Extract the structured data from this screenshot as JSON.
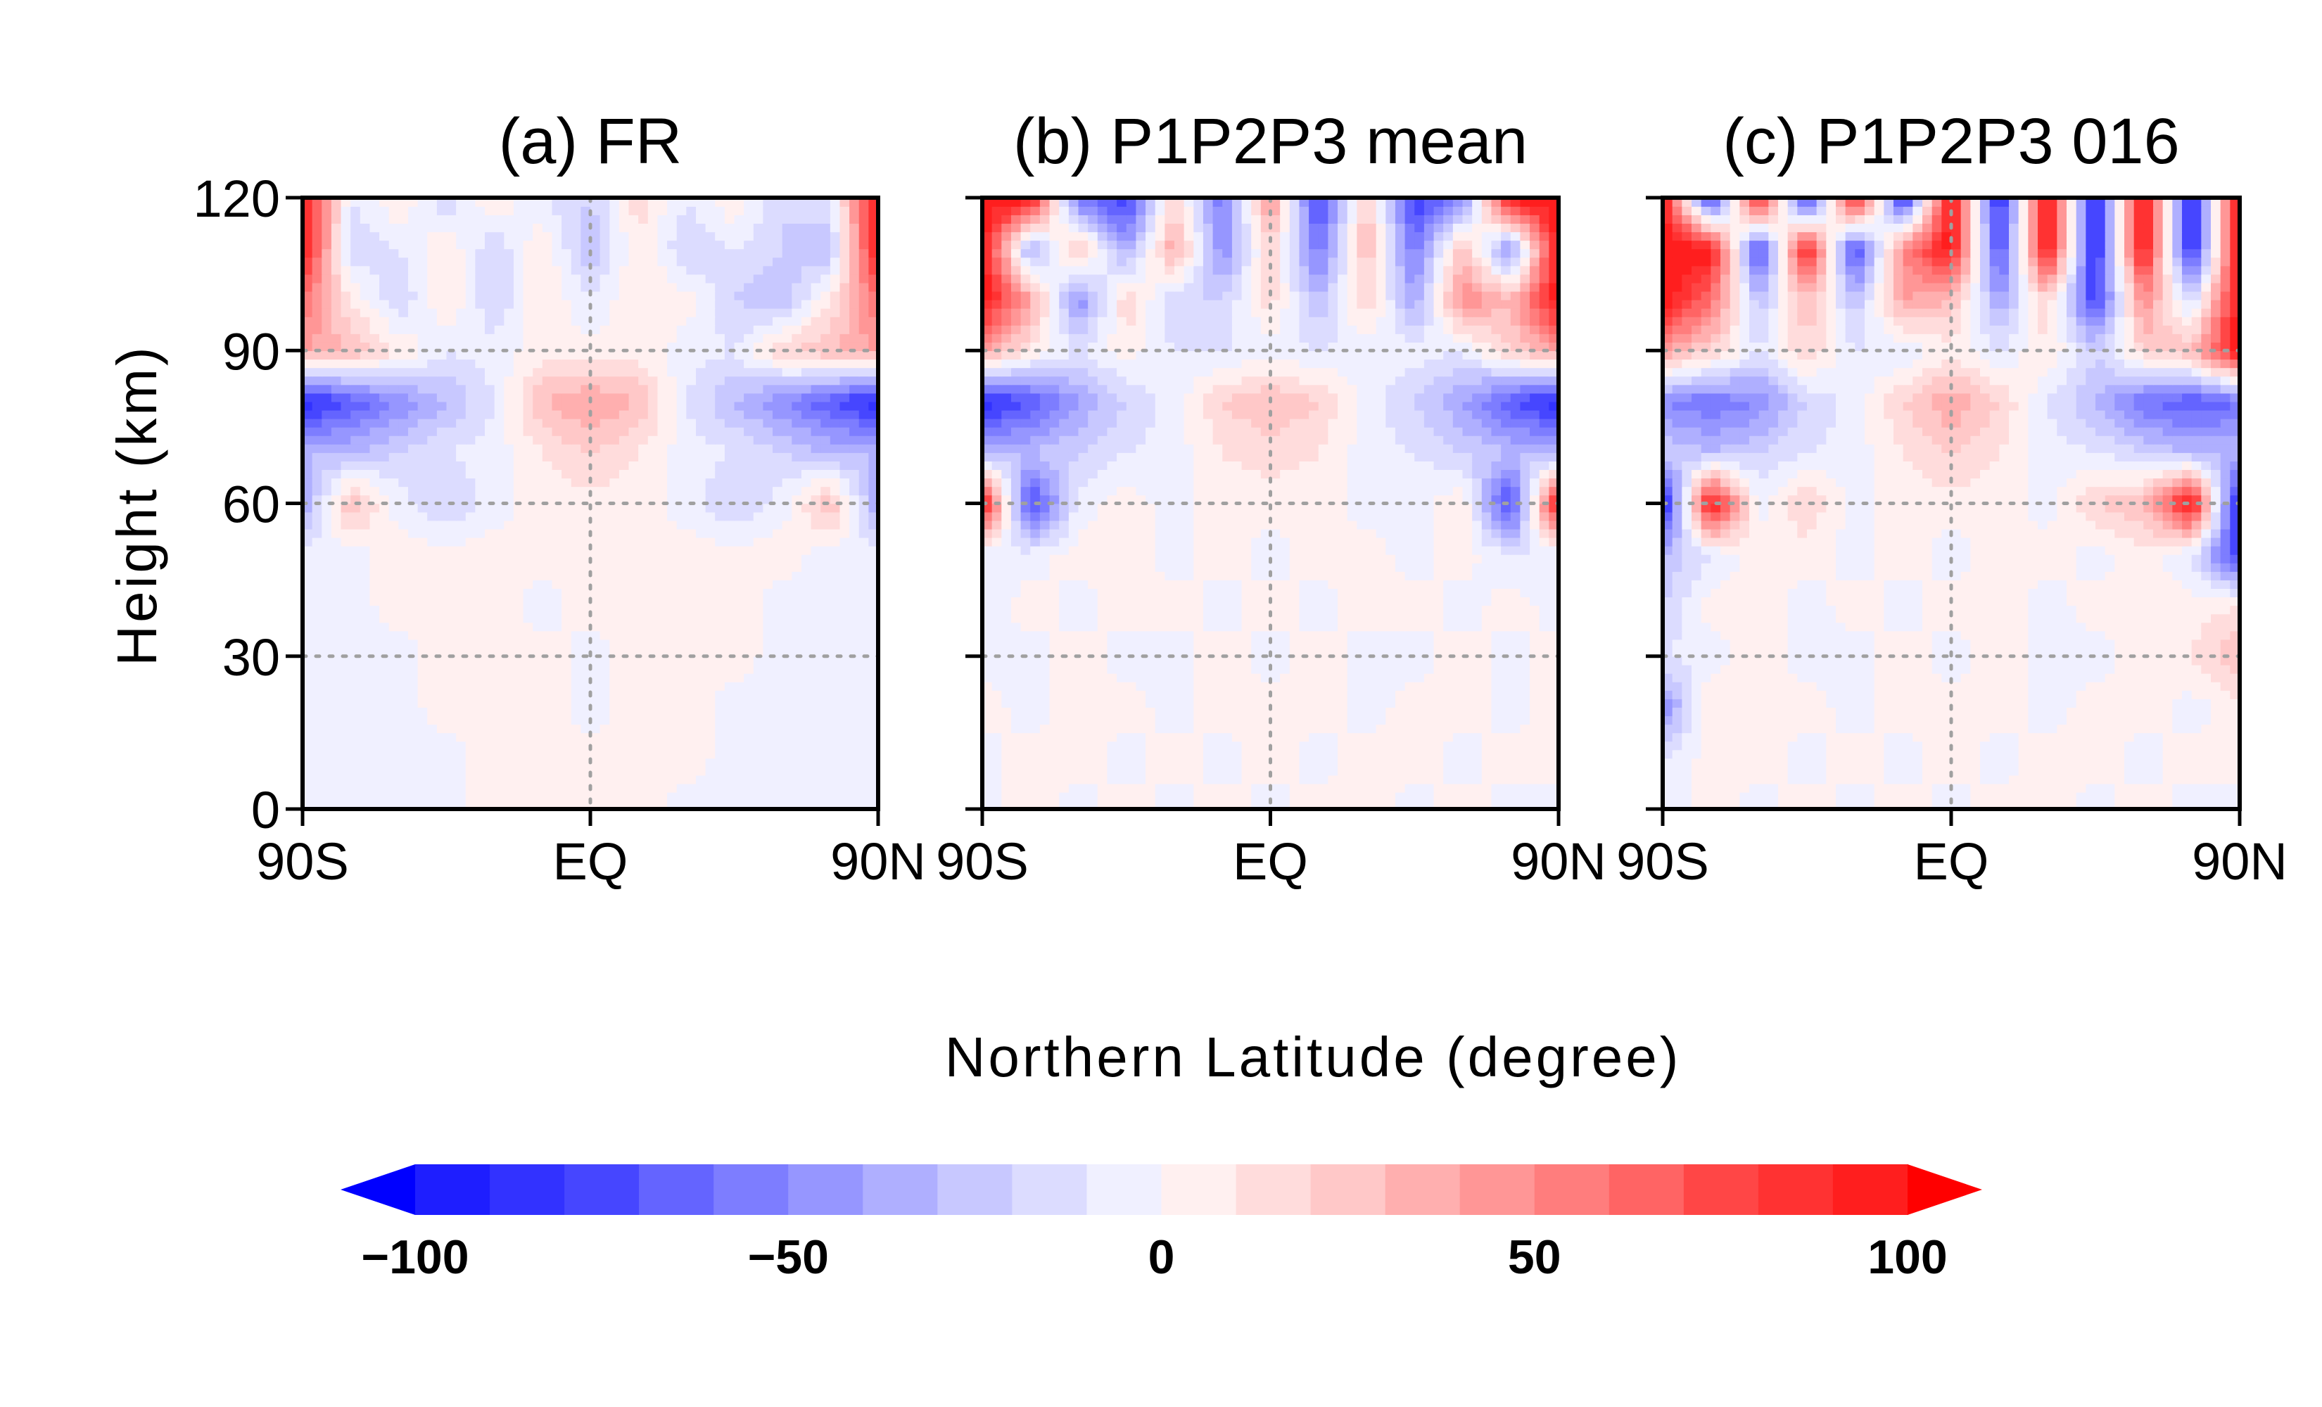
{
  "chart_data": {
    "type": "heatmap",
    "shared_xlabel": "Northern Latitude (degree)",
    "ylabel": "Height (km)",
    "xlim": [
      -90,
      90
    ],
    "ylim": [
      0,
      120
    ],
    "x_ticks": [
      {
        "value": -90,
        "label": "90S"
      },
      {
        "value": 0,
        "label": "EQ"
      },
      {
        "value": 90,
        "label": "90N"
      }
    ],
    "y_ticks": [
      {
        "value": 0,
        "label": "0"
      },
      {
        "value": 30,
        "label": "30"
      },
      {
        "value": 60,
        "label": "60"
      },
      {
        "value": 90,
        "label": "90"
      },
      {
        "value": 120,
        "label": "120"
      }
    ],
    "grid": "dotted at 30, 60, 90 km and EQ",
    "colorbar": {
      "placement": "bottom",
      "levels": [
        -100,
        -90,
        -80,
        -70,
        -60,
        -50,
        -40,
        -30,
        -20,
        -10,
        0,
        10,
        20,
        30,
        40,
        50,
        60,
        70,
        80,
        90,
        100
      ],
      "tick_labels": [
        "−100",
        "−50",
        "0",
        "50",
        "100"
      ],
      "tick_values": [
        -100,
        -50,
        0,
        50,
        100
      ],
      "colors": [
        "#1e1eff",
        "#3232ff",
        "#4646ff",
        "#6464ff",
        "#7d7dff",
        "#9696ff",
        "#afafff",
        "#c8c8ff",
        "#dcdcff",
        "#f0f0ff",
        "#fff0f0",
        "#ffdcdc",
        "#ffc8c8",
        "#ffafaf",
        "#ff9696",
        "#ff7d7d",
        "#ff6464",
        "#ff4646",
        "#ff3232",
        "#ff1e1e"
      ],
      "under_color": "#0000ff",
      "over_color": "#ff0000"
    },
    "lat": [
      -90,
      -75,
      -60,
      -45,
      -30,
      -15,
      0,
      15,
      30,
      45,
      60,
      75,
      90
    ],
    "height": [
      0,
      10,
      20,
      30,
      40,
      50,
      60,
      70,
      80,
      90,
      100,
      110,
      120
    ],
    "panels": [
      {
        "title": "(a) FR",
        "values": [
          [
            -5,
            -5,
            -5,
            -5,
            5,
            5,
            5,
            5,
            -5,
            -5,
            -5,
            -5,
            -5
          ],
          [
            -5,
            -5,
            -5,
            -5,
            5,
            5,
            5,
            5,
            5,
            -5,
            -5,
            -5,
            -5
          ],
          [
            -5,
            -5,
            -5,
            5,
            5,
            5,
            -5,
            5,
            5,
            -5,
            -5,
            -5,
            -5
          ],
          [
            -5,
            -5,
            -5,
            5,
            5,
            5,
            -5,
            5,
            5,
            5,
            -5,
            -5,
            -5
          ],
          [
            -5,
            -5,
            5,
            5,
            5,
            -5,
            5,
            5,
            5,
            5,
            -5,
            -5,
            -5
          ],
          [
            -5,
            -5,
            5,
            5,
            5,
            5,
            5,
            5,
            5,
            5,
            5,
            -5,
            -5
          ],
          [
            -40,
            30,
            -5,
            -20,
            -5,
            5,
            5,
            5,
            -5,
            -20,
            -5,
            30,
            -40
          ],
          [
            -30,
            -30,
            -20,
            -10,
            -5,
            10,
            20,
            10,
            -5,
            -10,
            -20,
            -30,
            -30
          ],
          [
            -90,
            -70,
            -50,
            -30,
            -10,
            30,
            40,
            30,
            -10,
            -30,
            -50,
            -70,
            -90
          ],
          [
            40,
            30,
            10,
            -10,
            -5,
            5,
            5,
            5,
            -5,
            -10,
            20,
            30,
            40
          ],
          [
            60,
            10,
            -20,
            10,
            -20,
            10,
            -10,
            10,
            5,
            -20,
            -30,
            10,
            60
          ],
          [
            100,
            -20,
            -10,
            10,
            -20,
            10,
            -30,
            10,
            -20,
            -10,
            -20,
            -30,
            100
          ],
          [
            100,
            -10,
            10,
            -20,
            10,
            -10,
            -20,
            15,
            -10,
            10,
            -20,
            -10,
            100
          ]
        ]
      },
      {
        "title": "(b) P1P2P3 mean",
        "values": [
          [
            -5,
            5,
            -5,
            5,
            -5,
            5,
            -5,
            5,
            5,
            -5,
            5,
            -5,
            -5
          ],
          [
            -5,
            5,
            5,
            -5,
            5,
            -5,
            5,
            -5,
            5,
            5,
            -5,
            5,
            5
          ],
          [
            5,
            -5,
            5,
            5,
            -5,
            5,
            5,
            5,
            -5,
            5,
            5,
            -5,
            5
          ],
          [
            -5,
            -5,
            5,
            -5,
            -5,
            5,
            -5,
            5,
            -5,
            -5,
            5,
            -5,
            5
          ],
          [
            -5,
            5,
            -5,
            5,
            5,
            -5,
            5,
            -5,
            5,
            5,
            -5,
            5,
            -5
          ],
          [
            -10,
            -5,
            5,
            5,
            -5,
            5,
            -5,
            5,
            5,
            -5,
            5,
            -10,
            -10
          ],
          [
            100,
            -80,
            -5,
            5,
            -5,
            5,
            5,
            5,
            -5,
            -5,
            10,
            -80,
            100
          ],
          [
            -30,
            -30,
            -20,
            -10,
            -5,
            10,
            15,
            10,
            -5,
            -10,
            -20,
            -30,
            -30
          ],
          [
            -90,
            -70,
            -40,
            -20,
            -5,
            20,
            30,
            20,
            -5,
            -20,
            -40,
            -70,
            -90
          ],
          [
            40,
            10,
            -10,
            5,
            -10,
            -10,
            -5,
            -10,
            -5,
            -5,
            -10,
            20,
            40
          ],
          [
            100,
            40,
            -50,
            20,
            -20,
            -20,
            15,
            -30,
            20,
            -40,
            50,
            30,
            100
          ],
          [
            100,
            -40,
            30,
            -40,
            40,
            -50,
            20,
            -60,
            30,
            -60,
            30,
            -50,
            100
          ],
          [
            100,
            100,
            -60,
            -80,
            20,
            -60,
            50,
            -80,
            30,
            -80,
            -50,
            100,
            100
          ]
        ]
      },
      {
        "title": "(c) P1P2P3 016",
        "values": [
          [
            -5,
            5,
            -5,
            5,
            -5,
            5,
            -5,
            5,
            5,
            -5,
            5,
            -5,
            -5
          ],
          [
            -10,
            5,
            5,
            -5,
            5,
            -5,
            5,
            -5,
            5,
            5,
            -5,
            5,
            5
          ],
          [
            -50,
            10,
            5,
            5,
            -5,
            5,
            5,
            5,
            -5,
            5,
            5,
            -5,
            5
          ],
          [
            -10,
            -5,
            5,
            -5,
            -5,
            5,
            -5,
            5,
            -5,
            -5,
            5,
            10,
            30
          ],
          [
            -20,
            5,
            5,
            -5,
            5,
            -5,
            5,
            5,
            -5,
            5,
            5,
            5,
            10
          ],
          [
            -30,
            -10,
            5,
            5,
            -5,
            5,
            -5,
            5,
            5,
            -5,
            5,
            -10,
            -80
          ],
          [
            -100,
            100,
            -5,
            20,
            -5,
            5,
            5,
            5,
            -5,
            20,
            30,
            100,
            -100
          ],
          [
            -20,
            -30,
            -20,
            -10,
            -5,
            10,
            20,
            10,
            -5,
            -10,
            -20,
            -30,
            -30
          ],
          [
            -50,
            -60,
            -50,
            -20,
            -5,
            20,
            40,
            20,
            -10,
            -30,
            -60,
            -70,
            -60
          ],
          [
            40,
            20,
            -10,
            20,
            -10,
            -10,
            5,
            -10,
            10,
            -20,
            20,
            30,
            100
          ],
          [
            100,
            60,
            -30,
            30,
            -30,
            40,
            30,
            -40,
            20,
            -80,
            50,
            -20,
            100
          ],
          [
            100,
            100,
            -80,
            100,
            -80,
            50,
            100,
            -80,
            100,
            -90,
            100,
            -90,
            100
          ],
          [
            100,
            -90,
            100,
            -90,
            100,
            -90,
            100,
            -90,
            100,
            -90,
            100,
            -90,
            100
          ]
        ]
      }
    ]
  }
}
